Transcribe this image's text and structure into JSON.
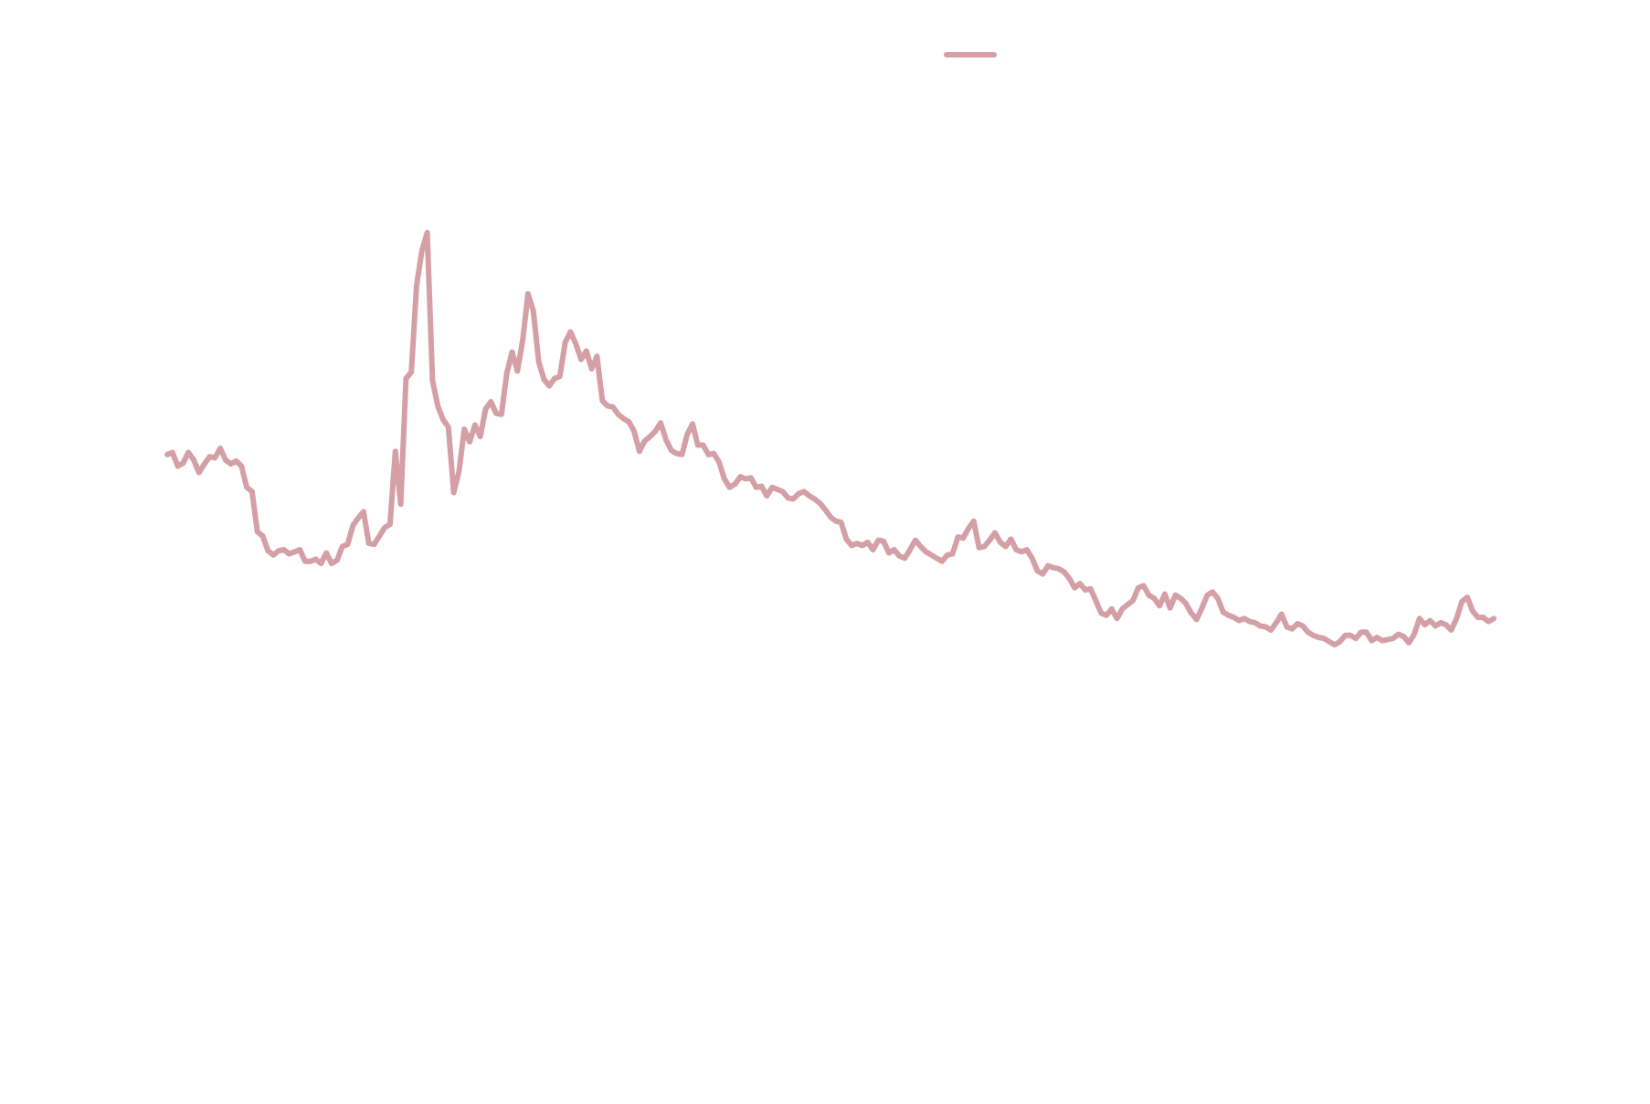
{
  "chart_data": {
    "type": "line",
    "series": [
      {
        "color": "#d4a0a6",
        "values": [
          610,
          612,
          599,
          602,
          612,
          605,
          593,
          601,
          608,
          607,
          616,
          605,
          601,
          604,
          599,
          579,
          575,
          537,
          533,
          519,
          515,
          519,
          520,
          516,
          518,
          520,
          509,
          509,
          511,
          507,
          517,
          507,
          510,
          523,
          525,
          543,
          550,
          556,
          526,
          525,
          533,
          541,
          544,
          613,
          563,
          682,
          688,
          770,
          803,
          820,
          680,
          656,
          643,
          636,
          574,
          594,
          634,
          622,
          638,
          627,
          653,
          660,
          649,
          648,
          687,
          707,
          689,
          718,
          762,
          746,
          698,
          681,
          675,
          682,
          684,
          716,
          726,
          715,
          700,
          708,
          691,
          703,
          661,
          656,
          655,
          648,
          644,
          641,
          632,
          613,
          623,
          627,
          632,
          640,
          624,
          614,
          611,
          610,
          629,
          639,
          619,
          619,
          610,
          611,
          603,
          587,
          579,
          582,
          589,
          587,
          588,
          579,
          580,
          571,
          579,
          577,
          575,
          569,
          568,
          573,
          575,
          571,
          568,
          564,
          558,
          551,
          547,
          546,
          530,
          524,
          526,
          524,
          527,
          520,
          529,
          528,
          517,
          520,
          514,
          512,
          520,
          529,
          523,
          518,
          515,
          512,
          509,
          515,
          516,
          532,
          531,
          540,
          547,
          522,
          523,
          529,
          536,
          527,
          523,
          530,
          520,
          518,
          520,
          512,
          500,
          497,
          505,
          503,
          502,
          499,
          493,
          484,
          488,
          482,
          483,
          472,
          460,
          458,
          464,
          455,
          464,
          468,
          472,
          484,
          486,
          477,
          474,
          467,
          478,
          465,
          477,
          474,
          469,
          460,
          454,
          465,
          477,
          480,
          474,
          461,
          458,
          456,
          453,
          455,
          452,
          451,
          448,
          447,
          444,
          451,
          459,
          447,
          445,
          450,
          448,
          442,
          439,
          437,
          436,
          433,
          430,
          433,
          439,
          439,
          436,
          442,
          442,
          434,
          437,
          434,
          435,
          436,
          440,
          438,
          432,
          440,
          455,
          449,
          453,
          448,
          451,
          449,
          444,
          455,
          471,
          475,
          462,
          456,
          456,
          452,
          455
        ]
      }
    ],
    "ylim": [
      0,
      1040
    ],
    "legend": "top"
  }
}
